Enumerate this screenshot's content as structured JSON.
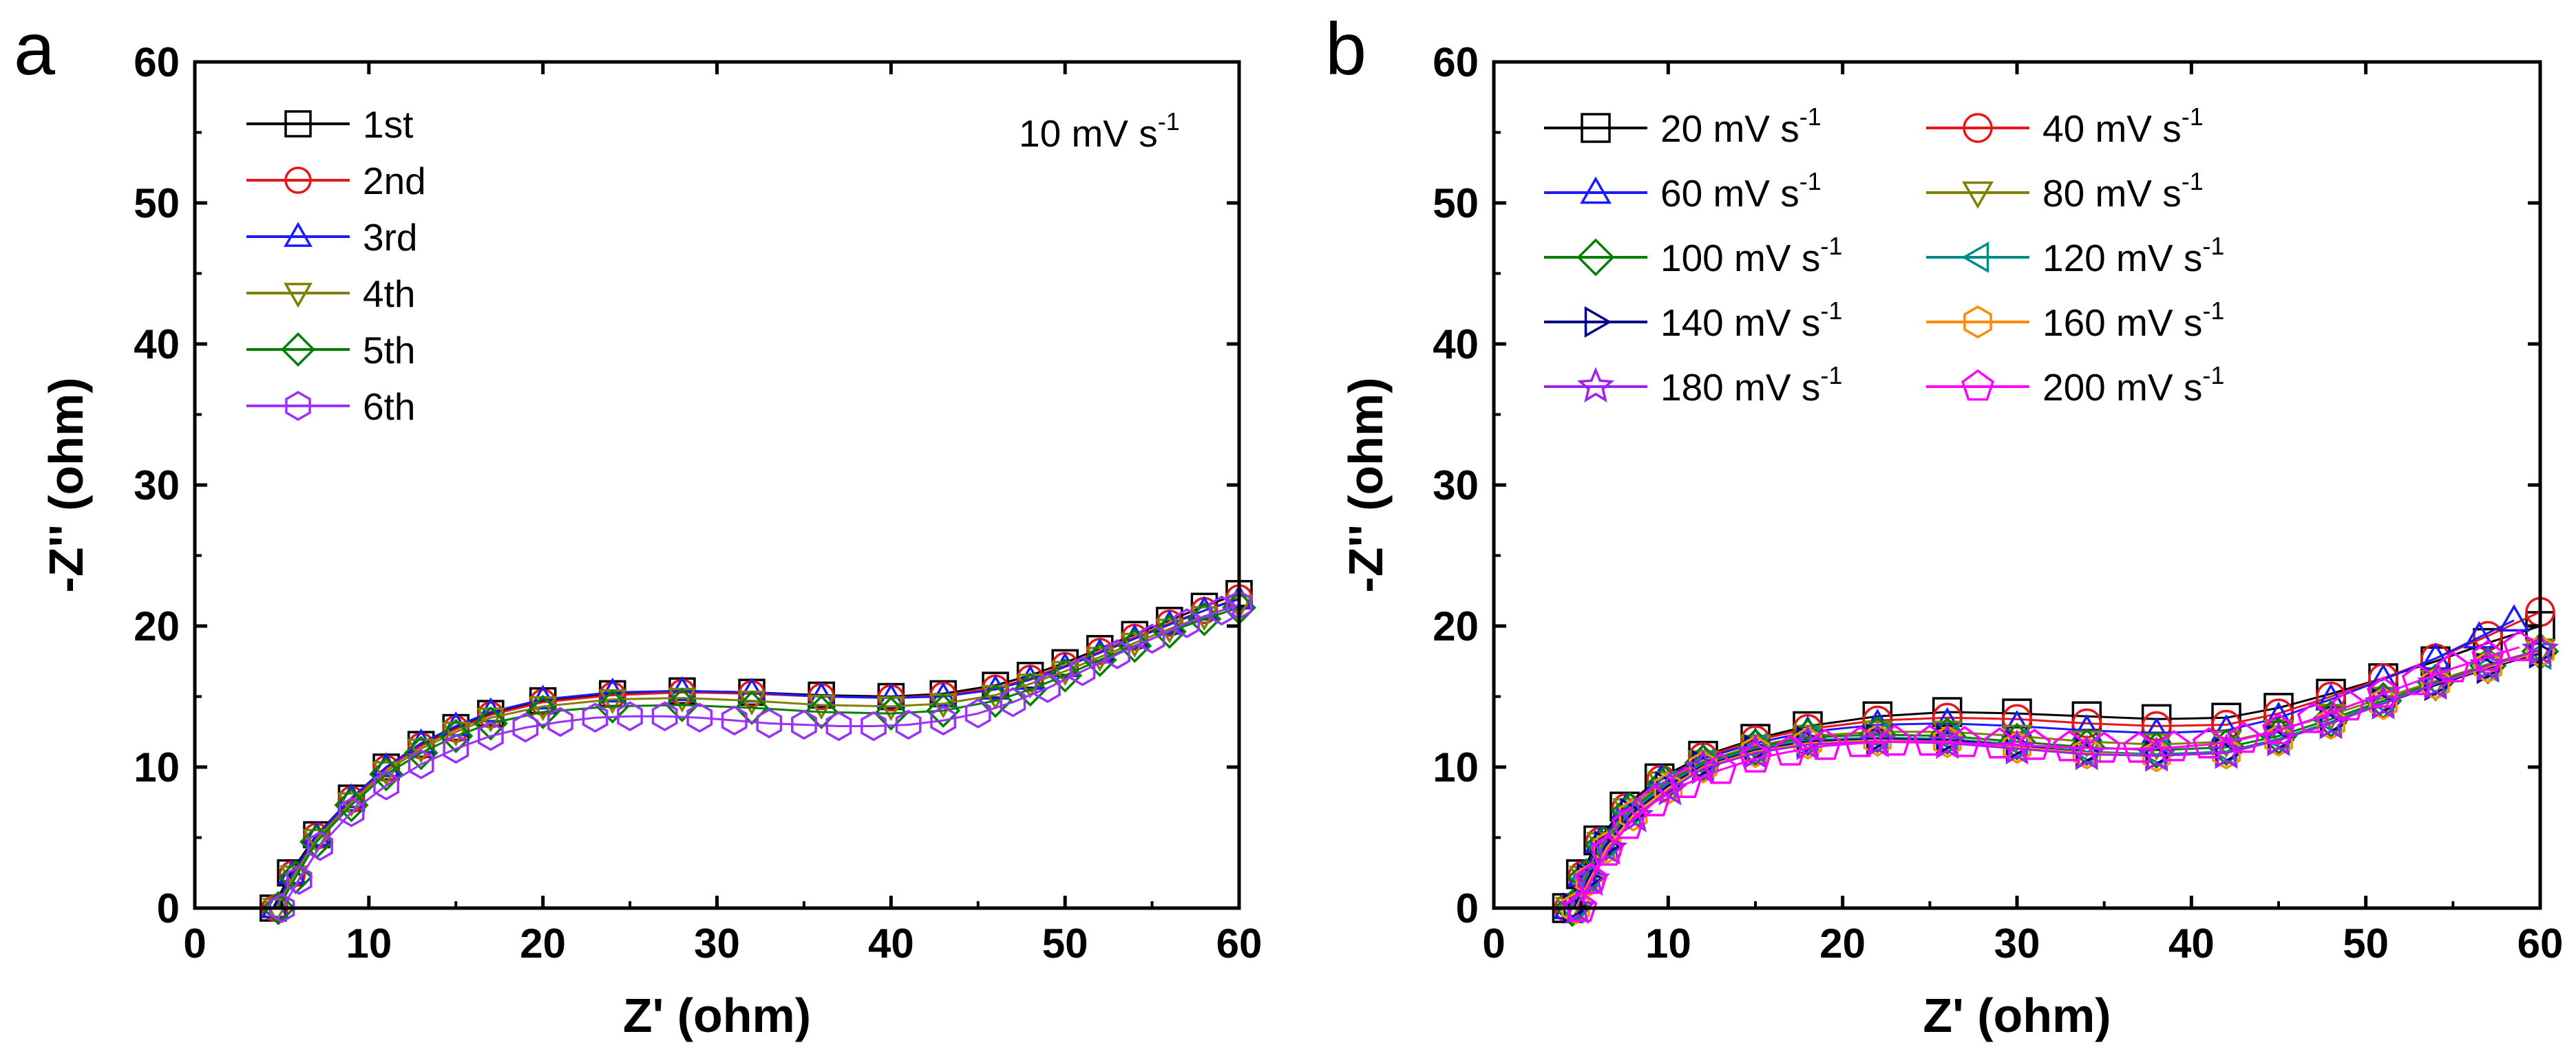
{
  "chart_data": [
    {
      "panel": "a",
      "type": "scatter",
      "title": "",
      "xlabel": "Z' (ohm)",
      "ylabel": "-Z'' (ohm)",
      "xlim": [
        0,
        60
      ],
      "ylim": [
        0,
        60
      ],
      "xticks": [
        0,
        10,
        20,
        30,
        40,
        50,
        60
      ],
      "yticks": [
        0,
        10,
        20,
        30,
        40,
        50,
        60
      ],
      "annotation": {
        "text": "10 mV s",
        "superscript": "-1"
      },
      "legend_position": "top-left",
      "series": [
        {
          "name": "1st",
          "color": "#000000",
          "marker": "square",
          "x": [
            4.5,
            5.5,
            7,
            9,
            11,
            13,
            15,
            17,
            20,
            24,
            28,
            32,
            36,
            40,
            43,
            46,
            48,
            50,
            52,
            54,
            56,
            58,
            60
          ],
          "y": [
            0,
            2.5,
            5.2,
            7.8,
            10,
            11.6,
            12.8,
            13.8,
            14.7,
            15.2,
            15.4,
            15.3,
            15.1,
            15,
            15.2,
            15.8,
            16.5,
            17.4,
            18.4,
            19.4,
            20.4,
            21.4,
            22.3
          ]
        },
        {
          "name": "2nd",
          "color": "#e8141a",
          "marker": "circle",
          "x": [
            4.6,
            5.6,
            7,
            9,
            11,
            13,
            15,
            17,
            20,
            24,
            28,
            32,
            36,
            40,
            43,
            46,
            48,
            50,
            52,
            54,
            56,
            58,
            60
          ],
          "y": [
            0,
            2.4,
            5.1,
            7.7,
            9.9,
            11.5,
            12.7,
            13.7,
            14.6,
            15.1,
            15.3,
            15.2,
            15,
            14.9,
            15.1,
            15.6,
            16.3,
            17.2,
            18.2,
            19.2,
            20.2,
            21.1,
            22
          ]
        },
        {
          "name": "3rd",
          "color": "#1a1aff",
          "marker": "triangle-up",
          "x": [
            4.6,
            5.6,
            7,
            9,
            11,
            13,
            15,
            17,
            20,
            24,
            28,
            32,
            36,
            40,
            43,
            46,
            48,
            50,
            52,
            54,
            56,
            58,
            60
          ],
          "y": [
            0,
            2.4,
            5.1,
            7.8,
            10,
            11.7,
            12.9,
            13.9,
            14.8,
            15.3,
            15.4,
            15.3,
            15,
            14.9,
            15,
            15.5,
            16.2,
            17.1,
            18.1,
            19.1,
            20.1,
            21.1,
            21.9
          ]
        },
        {
          "name": "4th",
          "color": "#808000",
          "marker": "triangle-down",
          "x": [
            4.7,
            5.7,
            7,
            9,
            11,
            13,
            15,
            17,
            20,
            24,
            28,
            32,
            36,
            40,
            43,
            46,
            48,
            50,
            52,
            54,
            56,
            58,
            60
          ],
          "y": [
            0,
            2.3,
            4.9,
            7.5,
            9.7,
            11.3,
            12.5,
            13.5,
            14.3,
            14.8,
            14.9,
            14.7,
            14.4,
            14.3,
            14.5,
            15.1,
            15.9,
            16.8,
            17.8,
            18.8,
            19.8,
            20.7,
            21.5
          ]
        },
        {
          "name": "5th",
          "color": "#008000",
          "marker": "diamond",
          "x": [
            4.8,
            5.8,
            7,
            9,
            11,
            13,
            15,
            17,
            20,
            24,
            28,
            32,
            36,
            40,
            43,
            46,
            48,
            50,
            52,
            54,
            56,
            58,
            60
          ],
          "y": [
            0,
            2.2,
            4.7,
            7.3,
            9.5,
            11,
            12.2,
            13.1,
            13.9,
            14.3,
            14.4,
            14.2,
            13.9,
            13.8,
            14,
            14.7,
            15.5,
            16.5,
            17.6,
            18.6,
            19.6,
            20.5,
            21.3
          ]
        },
        {
          "name": "6th",
          "color": "#9b30ff",
          "marker": "hexagon",
          "x": [
            5,
            6,
            7.2,
            9,
            11,
            13,
            15,
            17,
            19,
            21,
            23,
            25,
            27,
            29,
            31,
            33,
            35,
            37,
            39,
            41,
            43,
            45,
            47,
            49,
            51,
            53,
            55,
            57,
            59,
            60
          ],
          "y": [
            0,
            2,
            4.4,
            6.8,
            8.7,
            10.2,
            11.3,
            12.2,
            12.8,
            13.2,
            13.5,
            13.6,
            13.6,
            13.5,
            13.3,
            13.1,
            13,
            12.9,
            12.9,
            13,
            13.3,
            13.8,
            14.6,
            15.6,
            16.8,
            18,
            19.1,
            20.2,
            21.1,
            21.5
          ]
        }
      ]
    },
    {
      "panel": "b",
      "type": "scatter",
      "title": "",
      "xlabel": "Z' (ohm)",
      "ylabel": "-Z'' (ohm)",
      "xlim": [
        0,
        60
      ],
      "ylim": [
        0,
        60
      ],
      "xticks": [
        0,
        10,
        20,
        30,
        40,
        50,
        60
      ],
      "yticks": [
        0,
        10,
        20,
        30,
        40,
        50,
        60
      ],
      "legend_position": "top-left",
      "series": [
        {
          "name": "20 mV s",
          "superscript": "-1",
          "color": "#000000",
          "marker": "square",
          "x": [
            4.2,
            5,
            6,
            7.5,
            9.5,
            12,
            15,
            18,
            22,
            26,
            30,
            34,
            38,
            42,
            45,
            48,
            51,
            54,
            57,
            60
          ],
          "y": [
            0,
            2.4,
            4.8,
            7.2,
            9.2,
            10.8,
            12,
            12.9,
            13.6,
            13.9,
            13.8,
            13.6,
            13.4,
            13.5,
            14.2,
            15.2,
            16.3,
            17.5,
            18.8,
            20
          ]
        },
        {
          "name": "40 mV s",
          "superscript": "-1",
          "color": "#e8141a",
          "marker": "circle",
          "x": [
            4.3,
            5.1,
            6.1,
            7.6,
            9.6,
            12,
            15,
            18,
            22,
            26,
            30,
            34,
            38,
            42,
            45,
            48,
            51,
            54,
            57,
            60
          ],
          "y": [
            0,
            2.3,
            4.7,
            7.1,
            9.1,
            10.7,
            11.9,
            12.7,
            13.3,
            13.5,
            13.4,
            13.1,
            12.9,
            13,
            13.8,
            15,
            16.3,
            17.7,
            19.3,
            21
          ]
        },
        {
          "name": "60 mV s",
          "superscript": "-1",
          "color": "#1a1aff",
          "marker": "triangle-up",
          "x": [
            4.3,
            5.1,
            6.1,
            7.6,
            9.6,
            12,
            15,
            18,
            22,
            26,
            30,
            34,
            38,
            42,
            45,
            48,
            51,
            54,
            56.5,
            58.5
          ],
          "y": [
            0,
            2.3,
            4.7,
            7.1,
            9.1,
            10.6,
            11.7,
            12.5,
            13,
            13.1,
            12.9,
            12.6,
            12.4,
            12.6,
            13.5,
            14.8,
            16.2,
            17.7,
            19.2,
            20.4
          ]
        },
        {
          "name": "80 mV s",
          "superscript": "-1",
          "color": "#808000",
          "marker": "triangle-down",
          "x": [
            4.4,
            5.2,
            6.2,
            7.7,
            9.7,
            12,
            15,
            18,
            22,
            26,
            30,
            34,
            38,
            42,
            45,
            48,
            51,
            54,
            57,
            60
          ],
          "y": [
            0,
            2.2,
            4.6,
            7,
            8.9,
            10.4,
            11.5,
            12.2,
            12.5,
            12.5,
            12.2,
            11.8,
            11.6,
            11.8,
            12.6,
            13.7,
            14.9,
            16.1,
            17.3,
            18.3
          ]
        },
        {
          "name": "100 mV s",
          "superscript": "-1",
          "color": "#008000",
          "marker": "diamond",
          "x": [
            4.5,
            5.3,
            6.3,
            7.8,
            9.8,
            12,
            15,
            18,
            22,
            26,
            30,
            34,
            38,
            42,
            45,
            48,
            51,
            54,
            57,
            60
          ],
          "y": [
            0,
            2.2,
            4.5,
            6.9,
            8.8,
            10.3,
            11.4,
            12.1,
            12.3,
            12.2,
            11.8,
            11.4,
            11.2,
            11.4,
            12.2,
            13.4,
            14.7,
            16,
            17.2,
            18.2
          ]
        },
        {
          "name": "120 mV s",
          "superscript": "-1",
          "color": "#008b8b",
          "marker": "triangle-left",
          "x": [
            4.5,
            5.3,
            6.3,
            7.8,
            9.8,
            12,
            15,
            18,
            22,
            26,
            30,
            34,
            38,
            42,
            45,
            48,
            51,
            54,
            57,
            60
          ],
          "y": [
            0,
            2.1,
            4.4,
            6.8,
            8.7,
            10.2,
            11.3,
            11.9,
            12.1,
            12,
            11.6,
            11.1,
            10.9,
            11.1,
            12,
            13.2,
            14.6,
            15.9,
            17.1,
            18
          ]
        },
        {
          "name": "140 mV s",
          "superscript": "-1",
          "color": "#00008b",
          "marker": "triangle-right",
          "x": [
            4.6,
            5.4,
            6.4,
            7.9,
            9.9,
            12,
            15,
            18,
            22,
            26,
            30,
            34,
            38,
            42,
            45,
            48,
            51,
            54,
            57,
            60
          ],
          "y": [
            0,
            2.1,
            4.4,
            6.7,
            8.6,
            10.1,
            11.2,
            11.8,
            12,
            11.9,
            11.5,
            11,
            10.8,
            11,
            11.9,
            13.1,
            14.5,
            15.8,
            17,
            18.1
          ]
        },
        {
          "name": "160 mV s",
          "superscript": "-1",
          "color": "#ff8c00",
          "marker": "hexagon",
          "x": [
            4.7,
            5.5,
            6.5,
            8,
            10,
            12,
            15,
            18,
            22,
            26,
            30,
            34,
            38,
            42,
            45,
            48,
            51,
            54,
            57,
            60
          ],
          "y": [
            0,
            2,
            4.3,
            6.6,
            8.5,
            10,
            11.1,
            11.7,
            11.9,
            11.8,
            11.4,
            11,
            10.8,
            11,
            11.9,
            13.1,
            14.5,
            15.9,
            17.1,
            18.2
          ]
        },
        {
          "name": "180 mV s",
          "superscript": "-1",
          "color": "#a020f0",
          "marker": "star",
          "x": [
            4.8,
            5.6,
            6.6,
            8.1,
            10.1,
            12,
            15,
            18,
            22,
            26,
            30,
            34,
            38,
            42,
            45,
            48,
            51,
            54,
            57,
            60
          ],
          "y": [
            0,
            2,
            4.2,
            6.5,
            8.4,
            9.9,
            11,
            11.6,
            11.8,
            11.7,
            11.3,
            10.9,
            10.8,
            11,
            11.9,
            13.1,
            14.5,
            15.9,
            17.2,
            18.3
          ]
        },
        {
          "name": "200 mV s",
          "superscript": "-1",
          "color": "#ff00ff",
          "marker": "pentagon",
          "x": [
            5,
            5.6,
            6.5,
            7.7,
            9.2,
            11,
            13,
            15,
            17,
            19,
            21,
            23,
            25,
            27,
            29,
            31,
            33,
            35,
            37,
            39,
            41,
            43,
            45,
            47,
            49,
            51,
            53,
            55,
            57,
            58.8
          ],
          "y": [
            0,
            2,
            4,
            5.9,
            7.5,
            8.8,
            9.8,
            10.6,
            11.1,
            11.5,
            11.7,
            11.8,
            11.8,
            11.7,
            11.6,
            11.5,
            11.4,
            11.3,
            11.3,
            11.4,
            11.6,
            12,
            12.6,
            13.4,
            14.3,
            15.2,
            16.1,
            17,
            17.8,
            18.5
          ]
        }
      ]
    }
  ]
}
